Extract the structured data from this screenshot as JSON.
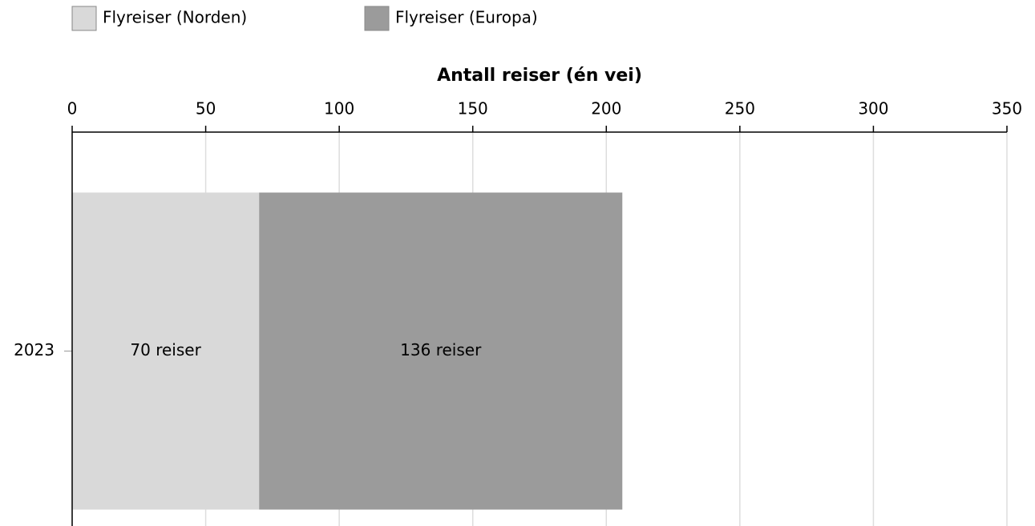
{
  "chart_data": {
    "type": "bar",
    "horizontal": true,
    "stacked": true,
    "xlabel": "Antall reiser (én vei)",
    "categories": [
      "2023"
    ],
    "series": [
      {
        "name": "Flyreiser (Norden)",
        "color": "#d9d9d9",
        "values": [
          70
        ],
        "value_labels": [
          "70 reiser"
        ]
      },
      {
        "name": "Flyreiser (Europa)",
        "color": "#9b9b9b",
        "values": [
          136
        ],
        "value_labels": [
          "136 reiser"
        ]
      }
    ],
    "xlim": [
      0,
      350
    ],
    "xticks": [
      0,
      50,
      100,
      150,
      200,
      250,
      300,
      350
    ],
    "grid": true,
    "legend": "top-left"
  }
}
